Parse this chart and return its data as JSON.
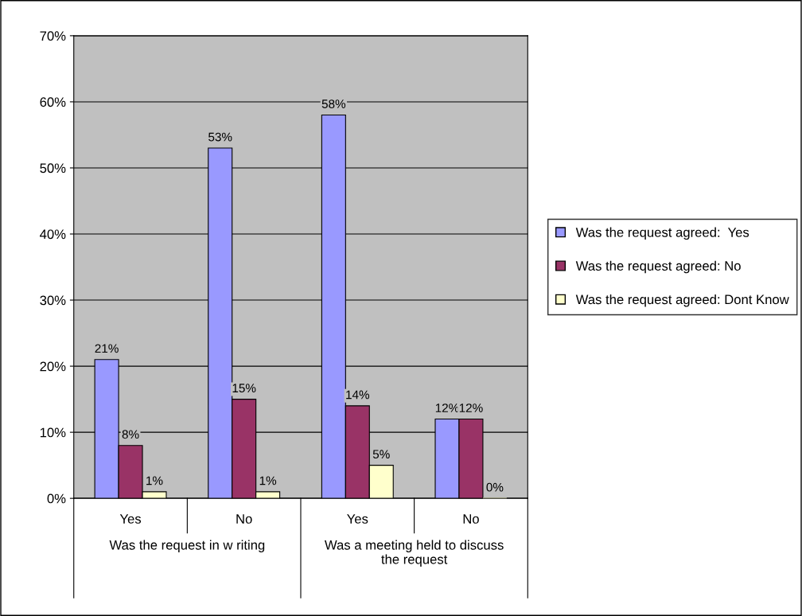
{
  "chart_data": {
    "type": "bar",
    "categories": [
      "Yes",
      "No",
      "Yes",
      "No"
    ],
    "series": [
      {
        "name": "Was the request agreed:  Yes",
        "color": "#9999ff",
        "values": [
          21,
          53,
          58,
          12
        ],
        "value_labels": [
          "21%",
          "53%",
          "58%",
          "12%"
        ]
      },
      {
        "name": "Was the request agreed: No",
        "color": "#993366",
        "values": [
          8,
          15,
          14,
          12
        ],
        "value_labels": [
          "8%",
          "15%",
          "14%",
          "12%"
        ]
      },
      {
        "name": "Was the request agreed: Dont Know",
        "color": "#ffffcc",
        "values": [
          1,
          1,
          5,
          0
        ],
        "value_labels": [
          "1%",
          "1%",
          "5%",
          "0%"
        ]
      }
    ],
    "ylim": [
      0,
      70
    ],
    "yticks": [
      {
        "value": 0,
        "label": "0%"
      },
      {
        "value": 10,
        "label": "10%"
      },
      {
        "value": 20,
        "label": "20%"
      },
      {
        "value": 30,
        "label": "30%"
      },
      {
        "value": 40,
        "label": "40%"
      },
      {
        "value": 50,
        "label": "50%"
      },
      {
        "value": 60,
        "label": "60%"
      },
      {
        "value": 70,
        "label": "70%"
      }
    ],
    "grid": "y",
    "legend": "right",
    "annotations": [
      "Was the request in w riting",
      "Was a meeting held to discuss the request"
    ]
  }
}
